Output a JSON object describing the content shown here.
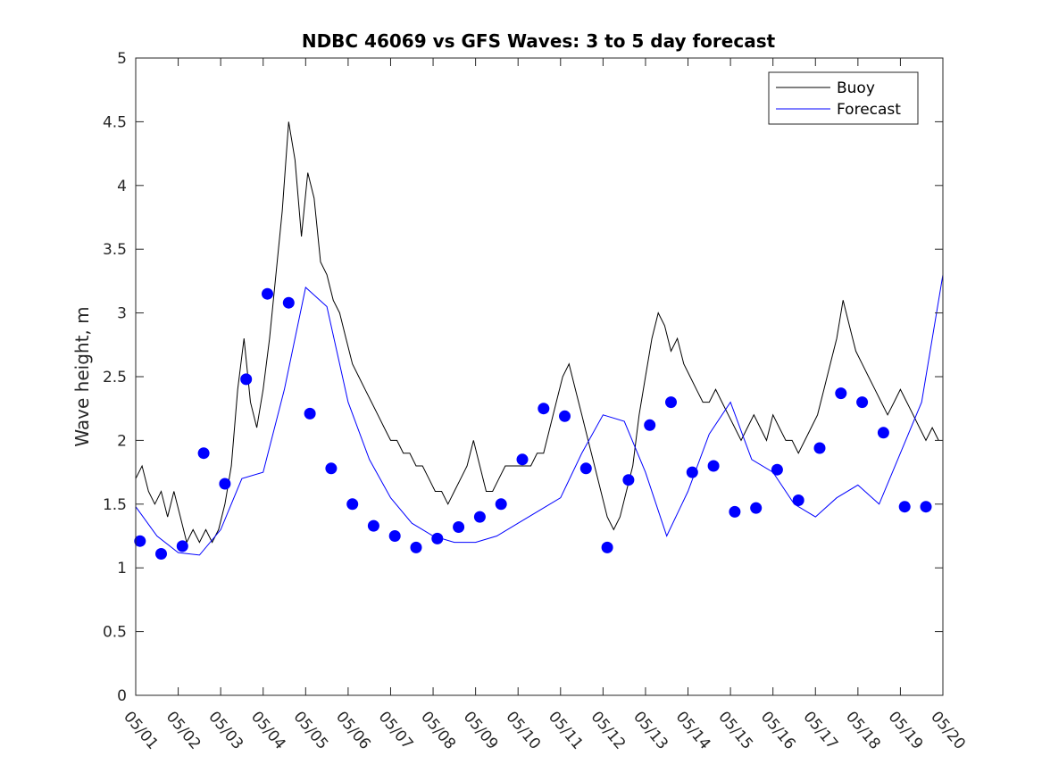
{
  "chart_data": {
    "type": "line",
    "title": "NDBC 46069 vs GFS Waves: 3 to 5 day forecast",
    "xlabel": "",
    "ylabel": "Wave height, m",
    "xlim": [
      0,
      19
    ],
    "ylim": [
      0,
      5
    ],
    "yticks": [
      0,
      0.5,
      1,
      1.5,
      2,
      2.5,
      3,
      3.5,
      4,
      4.5,
      5
    ],
    "yticklabels": [
      "0",
      "0.5",
      "1",
      "1.5",
      "2",
      "2.5",
      "3",
      "3.5",
      "4",
      "4.5",
      "5"
    ],
    "xticklabels": [
      "05/01",
      "05/02",
      "05/03",
      "05/04",
      "05/05",
      "05/06",
      "05/07",
      "05/08",
      "05/09",
      "05/10",
      "05/11",
      "05/12",
      "05/13",
      "05/14",
      "05/15",
      "05/16",
      "05/17",
      "05/18",
      "05/19",
      "05/20"
    ],
    "grid": false,
    "legend": {
      "location": "top-right",
      "entries": [
        {
          "label": "Buoy",
          "color": "#000000"
        },
        {
          "label": "Forecast",
          "color": "#0000ff"
        }
      ]
    },
    "colors": {
      "buoy": "#000000",
      "forecast": "#0000ff",
      "markers": "#0000ff"
    },
    "series": [
      {
        "name": "Buoy",
        "color": "#000000",
        "x": [
          0,
          0.15,
          0.3,
          0.45,
          0.6,
          0.75,
          0.9,
          1.05,
          1.2,
          1.35,
          1.5,
          1.65,
          1.8,
          1.95,
          2.1,
          2.25,
          2.4,
          2.55,
          2.7,
          2.85,
          3.0,
          3.15,
          3.3,
          3.45,
          3.6,
          3.75,
          3.9,
          4.05,
          4.2,
          4.35,
          4.5,
          4.65,
          4.8,
          4.95,
          5.1,
          5.25,
          5.4,
          5.55,
          5.7,
          5.85,
          6.0,
          6.15,
          6.3,
          6.45,
          6.6,
          6.75,
          6.9,
          7.05,
          7.2,
          7.35,
          7.5,
          7.65,
          7.8,
          7.95,
          8.1,
          8.25,
          8.4,
          8.55,
          8.7,
          8.85,
          9.0,
          9.15,
          9.3,
          9.45,
          9.6,
          9.75,
          9.9,
          10.05,
          10.2,
          10.35,
          10.5,
          10.65,
          10.8,
          10.95,
          11.1,
          11.25,
          11.4,
          11.55,
          11.7,
          11.85,
          12.0,
          12.15,
          12.3,
          12.45,
          12.6,
          12.75,
          12.9,
          13.05,
          13.2,
          13.35,
          13.5,
          13.65,
          13.8,
          13.95,
          14.1,
          14.25,
          14.4,
          14.55,
          14.7,
          14.85,
          15.0,
          15.15,
          15.3,
          15.45,
          15.6,
          15.75,
          15.9,
          16.05,
          16.2,
          16.35,
          16.5,
          16.65,
          16.8,
          16.95,
          17.1,
          17.25,
          17.4,
          17.55,
          17.7,
          17.85,
          18.0,
          18.15,
          18.3,
          18.45,
          18.6,
          18.75,
          18.9
        ],
        "y": [
          1.7,
          1.8,
          1.6,
          1.5,
          1.6,
          1.4,
          1.6,
          1.4,
          1.2,
          1.3,
          1.2,
          1.3,
          1.2,
          1.3,
          1.5,
          1.8,
          2.4,
          2.8,
          2.3,
          2.1,
          2.4,
          2.8,
          3.3,
          3.8,
          4.5,
          4.2,
          3.6,
          4.1,
          3.9,
          3.4,
          3.3,
          3.1,
          3.0,
          2.8,
          2.6,
          2.5,
          2.4,
          2.3,
          2.2,
          2.1,
          2.0,
          2.0,
          1.9,
          1.9,
          1.8,
          1.8,
          1.7,
          1.6,
          1.6,
          1.5,
          1.6,
          1.7,
          1.8,
          2.0,
          1.8,
          1.6,
          1.6,
          1.7,
          1.8,
          1.8,
          1.8,
          1.8,
          1.8,
          1.9,
          1.9,
          2.1,
          2.3,
          2.5,
          2.6,
          2.4,
          2.2,
          2.0,
          1.8,
          1.6,
          1.4,
          1.3,
          1.4,
          1.6,
          1.8,
          2.2,
          2.5,
          2.8,
          3.0,
          2.9,
          2.7,
          2.8,
          2.6,
          2.5,
          2.4,
          2.3,
          2.3,
          2.4,
          2.3,
          2.2,
          2.1,
          2.0,
          2.1,
          2.2,
          2.1,
          2.0,
          2.2,
          2.1,
          2.0,
          2.0,
          1.9,
          2.0,
          2.1,
          2.2,
          2.4,
          2.6,
          2.8,
          3.1,
          2.9,
          2.7,
          2.6,
          2.5,
          2.4,
          2.3,
          2.2,
          2.3,
          2.4,
          2.3,
          2.2,
          2.1,
          2.0,
          2.1,
          2.0
        ]
      },
      {
        "name": "Forecast",
        "color": "#0000ff",
        "x": [
          0,
          0.5,
          1.0,
          1.5,
          2.0,
          2.5,
          3.0,
          3.5,
          4.0,
          4.5,
          5.0,
          5.5,
          6.0,
          6.5,
          7.0,
          7.5,
          8.0,
          8.5,
          9.0,
          9.5,
          10.0,
          10.5,
          11.0,
          11.5,
          12.0,
          12.5,
          13.0,
          13.5,
          14.0,
          14.5,
          15.0,
          15.5,
          16.0,
          16.5,
          17.0,
          17.5,
          18.0,
          18.5,
          19.0
        ],
        "y": [
          1.48,
          1.25,
          1.12,
          1.1,
          1.3,
          1.7,
          1.75,
          2.4,
          3.2,
          3.05,
          2.3,
          1.85,
          1.55,
          1.35,
          1.25,
          1.2,
          1.2,
          1.25,
          1.35,
          1.45,
          1.55,
          1.9,
          2.2,
          2.15,
          1.75,
          1.25,
          1.6,
          2.05,
          2.3,
          1.85,
          1.75,
          1.5,
          1.4,
          1.55,
          1.65,
          1.5,
          1.9,
          2.3,
          3.3
        ]
      }
    ],
    "markers": {
      "name": "Forecast",
      "color": "#0000ff",
      "x": [
        0.1,
        0.6,
        1.1,
        1.6,
        2.1,
        2.6,
        3.1,
        3.6,
        4.1,
        4.6,
        5.1,
        5.6,
        6.1,
        6.6,
        7.1,
        7.6,
        8.1,
        8.6,
        9.1,
        9.6,
        10.1,
        10.6,
        11.1,
        11.6,
        12.1,
        12.6,
        13.1,
        13.6,
        14.1,
        14.6,
        15.1,
        15.6,
        16.1,
        16.6,
        17.1,
        17.6,
        18.1,
        18.6
      ],
      "y": [
        1.21,
        1.11,
        1.17,
        1.9,
        1.66,
        2.48,
        3.15,
        3.08,
        2.21,
        1.78,
        1.5,
        1.33,
        1.25,
        1.16,
        1.23,
        1.32,
        1.4,
        1.5,
        1.85,
        2.25,
        2.19,
        1.78,
        1.16,
        1.69,
        2.12,
        2.3,
        1.75,
        1.8,
        1.44,
        1.47,
        1.77,
        1.53,
        1.94,
        2.37,
        2.3,
        2.06,
        1.48,
        1.48
      ]
    }
  }
}
